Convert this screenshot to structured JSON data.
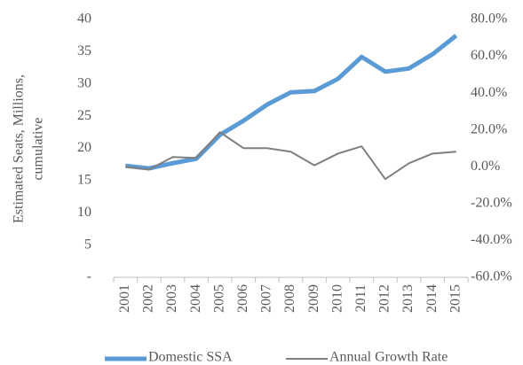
{
  "chart_data": {
    "type": "line",
    "y_label_lines": [
      "Estimated Seats, Millions,",
      "cumulative"
    ],
    "categories": [
      "2001",
      "2002",
      "2003",
      "2004",
      "2005",
      "2006",
      "2007",
      "2008",
      "2009",
      "2010",
      "2011",
      "2012",
      "2013",
      "2014",
      "2015"
    ],
    "series": [
      {
        "name": "Domestic SSA",
        "color": "#5b9bd5",
        "axis": "y",
        "values": [
          17.3,
          16.9,
          17.7,
          18.4,
          22.1,
          24.3,
          26.8,
          28.7,
          28.9,
          30.8,
          34.2,
          31.9,
          32.4,
          34.6,
          37.5
        ]
      },
      {
        "name": "Annual Growth Rate",
        "color": "#7f7f7f",
        "axis": "y2",
        "values": [
          0,
          -1.5,
          5.3,
          4.8,
          18.8,
          10.1,
          10.1,
          8.2,
          0.8,
          7.2,
          11.1,
          -6.7,
          1.9,
          7.2,
          8.2
        ]
      }
    ],
    "ylim": [
      0,
      40
    ],
    "yticks": [
      {
        "value": 0,
        "label": "-"
      },
      5,
      10,
      15,
      20,
      25,
      30,
      35,
      40
    ],
    "y2lim": [
      -60,
      80
    ],
    "y2ticks": [
      {
        "value": -60,
        "label": "-60.0%"
      },
      {
        "value": -40,
        "label": "-40.0%"
      },
      {
        "value": -20,
        "label": "-20.0%"
      },
      {
        "value": 0,
        "label": "0.0%"
      },
      {
        "value": 20,
        "label": "20.0%"
      },
      {
        "value": 40,
        "label": "40.0%"
      },
      {
        "value": 60,
        "label": "60.0%"
      },
      {
        "value": 80,
        "label": "80.0%"
      }
    ],
    "grid": false,
    "legend": "bottom"
  }
}
